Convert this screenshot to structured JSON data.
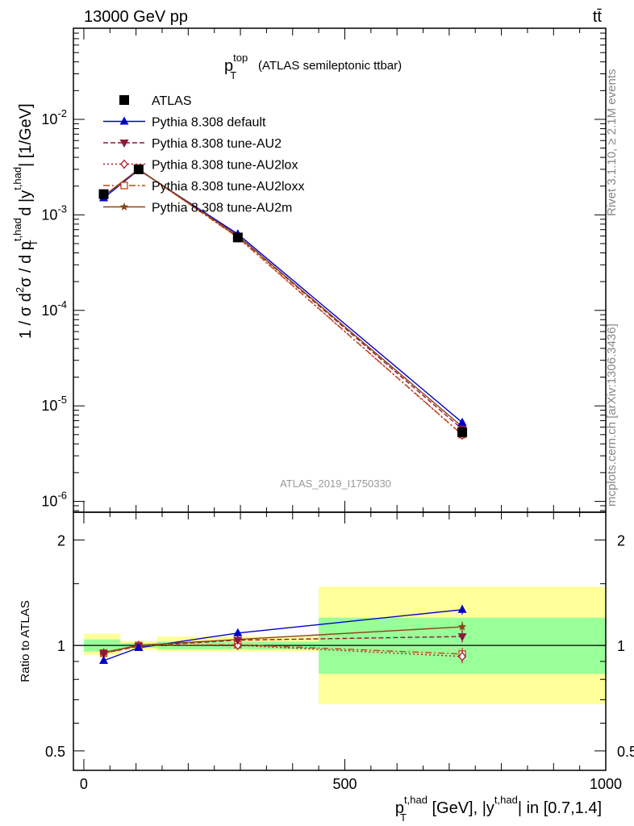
{
  "header": {
    "energy_label": "13000 GeV pp",
    "process_label": "tt̄",
    "side_rivet": "Rivet 3.1.10, ≥ 2.1M events",
    "side_mcplots": "mcplots.cern.ch [arXiv:1306.3436]"
  },
  "chart_data": [
    {
      "type": "line",
      "panel": "main",
      "title_main": "p",
      "title_sup": "top",
      "title_sub": "T",
      "title_rest": "(ATLAS semileptonic ttbar)",
      "analysis_tag": "ATLAS_2019_I1750330",
      "ylabel": "1 / σ d²σ / d p_T^{t,had} d |y^{t,had}| [1/GeV]",
      "ylabel_parts": {
        "a": "1 / σ d",
        "a_sup": "2",
        "b": "σ / d p",
        "b_sub": "T",
        "b_sup": "t,had",
        "c": " d |y",
        "c_sup": "t,had",
        "d": "| [1/GeV]"
      },
      "yscale": "log",
      "ylim": [
        7.7e-07,
        0.09
      ],
      "xlim": [
        -20,
        1000
      ],
      "ytick_labels": [
        {
          "base": "10",
          "exp": "-6"
        },
        {
          "base": "10",
          "exp": "-5"
        },
        {
          "base": "10",
          "exp": "-4"
        },
        {
          "base": "10",
          "exp": "-3"
        },
        {
          "base": "10",
          "exp": "-2"
        }
      ],
      "ytick_values": [
        1e-06,
        1e-05,
        0.0001,
        0.001,
        0.01
      ],
      "bins": [
        [
          0,
          70
        ],
        [
          70,
          140
        ],
        [
          140,
          450
        ],
        [
          450,
          1000
        ]
      ],
      "x": [
        38,
        105,
        295,
        725
      ],
      "series": [
        {
          "name": "ATLAS",
          "style": "data",
          "color": "#000000",
          "marker": "square-filled",
          "values": [
            0.00165,
            0.003,
            0.00058,
            5.3e-06
          ],
          "errors": [
            6e-05,
            8e-05,
            2e-05,
            6e-07
          ]
        },
        {
          "name": "Pythia 8.308 default",
          "style": "solid",
          "color": "#0000cc",
          "marker": "triangle-up-filled",
          "values": [
            0.0015,
            0.00295,
            0.00063,
            6.7e-06
          ]
        },
        {
          "name": "Pythia 8.308 tune-AU2",
          "style": "dashed",
          "color": "#8b1a3a",
          "marker": "triangle-down-filled",
          "values": [
            0.00157,
            0.00298,
            0.0006,
            5.7e-06
          ]
        },
        {
          "name": "Pythia 8.308 tune-AU2lox",
          "style": "dotted",
          "color": "#b2182b",
          "marker": "diamond-open",
          "values": [
            0.00157,
            0.003,
            0.00058,
            4.95e-06
          ]
        },
        {
          "name": "Pythia 8.308 tune-AU2loxx",
          "style": "dashdot",
          "color": "#c0440c",
          "marker": "square-open",
          "values": [
            0.00157,
            0.003,
            0.000582,
            5e-06
          ]
        },
        {
          "name": "Pythia 8.308 tune-AU2m",
          "style": "solid",
          "color": "#8b4513",
          "marker": "star",
          "values": [
            0.00158,
            0.003,
            0.000605,
            6.05e-06
          ]
        }
      ]
    },
    {
      "type": "line",
      "panel": "ratio",
      "ylabel": "Ratio to ATLAS",
      "xlabel": "p_T^{t,had} [GeV], |y^{t,had}| in [0.7,1.4]",
      "xlabel_parts": {
        "a": "p",
        "a_sub": "T",
        "a_sup": "t,had",
        "b": " [GeV], |y",
        "b_sup": "t,had",
        "c": "| in [0.7,1.4]"
      },
      "yscale": "log",
      "ylim": [
        0.44,
        2.4
      ],
      "xlim": [
        -20,
        1000
      ],
      "xticks": [
        0,
        500,
        1000
      ],
      "xtick_labels": [
        "0",
        "500",
        "1000"
      ],
      "yticks": [
        0.5,
        1,
        2
      ],
      "ytick_labels": [
        "0.5",
        "1",
        "2"
      ],
      "reference": 1,
      "bands_1sigma": [
        [
          0.96,
          1.04
        ],
        [
          0.985,
          1.015
        ],
        [
          0.975,
          1.025
        ],
        [
          0.83,
          1.2
        ]
      ],
      "bands_2sigma": [
        [
          0.94,
          1.08
        ],
        [
          0.97,
          1.03
        ],
        [
          0.96,
          1.06
        ],
        [
          0.68,
          1.47
        ]
      ],
      "x": [
        38,
        105,
        295,
        725
      ],
      "series": [
        {
          "name": "Pythia 8.308 default",
          "color": "#0000cc",
          "marker": "triangle-up-filled",
          "values": [
            0.905,
            0.985,
            1.085,
            1.265
          ],
          "errors": [
            0,
            0,
            0,
            0.04
          ]
        },
        {
          "name": "Pythia 8.308 tune-AU2",
          "color": "#8b1a3a",
          "marker": "triangle-down-filled",
          "values": [
            0.95,
            0.995,
            1.035,
            1.06
          ],
          "errors": [
            0,
            0,
            0,
            0.04
          ]
        },
        {
          "name": "Pythia 8.308 tune-AU2lox",
          "color": "#b2182b",
          "marker": "diamond-open",
          "values": [
            0.95,
            1.0,
            1.0,
            0.93
          ],
          "errors": [
            0,
            0,
            0,
            0.04
          ]
        },
        {
          "name": "Pythia 8.308 tune-AU2loxx",
          "color": "#c0440c",
          "marker": "square-open",
          "values": [
            0.95,
            1.0,
            1.005,
            0.945
          ],
          "errors": [
            0,
            0,
            0,
            0.04
          ]
        },
        {
          "name": "Pythia 8.308 tune-AU2m",
          "color": "#8b4513",
          "marker": "star",
          "values": [
            0.955,
            1.0,
            1.04,
            1.13
          ],
          "errors": [
            0,
            0,
            0,
            0.04
          ]
        }
      ]
    }
  ]
}
